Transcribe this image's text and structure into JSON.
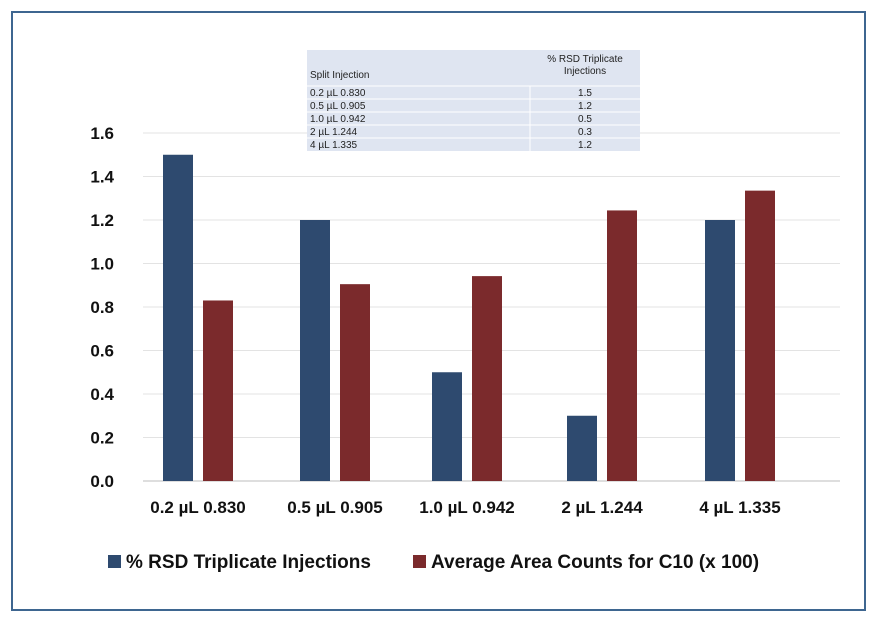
{
  "chart_data": {
    "type": "bar",
    "categories": [
      "0.2 µL 0.830",
      "0.5 µL  0.905",
      "1.0 µL  0.942",
      "2 µL  1.244",
      "4 µL  1.335"
    ],
    "series": [
      {
        "name": "% RSD Triplicate Injections",
        "color": "#2e4a6f",
        "values": [
          1.5,
          1.2,
          0.5,
          0.3,
          1.2
        ]
      },
      {
        "name": "Average Area Counts for C10 (x 100)",
        "color": "#7b2a2c",
        "values": [
          0.83,
          0.905,
          0.942,
          1.244,
          1.335
        ]
      }
    ],
    "ylim": [
      0,
      1.6
    ],
    "yticks": [
      "0.0",
      "0.2",
      "0.4",
      "0.6",
      "0.8",
      "1.0",
      "1.2",
      "1.4",
      "1.6"
    ],
    "grid": true,
    "legend": "bottom",
    "title": "",
    "xlabel": "",
    "ylabel": ""
  },
  "inset_table": {
    "headers": [
      "Split Injection",
      "% RSD Triplicate Injections"
    ],
    "rows": [
      [
        "0.2 µL 0.830",
        "1.5"
      ],
      [
        "0.5 µL  0.905",
        "1.2"
      ],
      [
        "1.0 µL  0.942",
        "0.5"
      ],
      [
        "2 µL  1.244",
        "0.3"
      ],
      [
        "4 µL  1.335",
        "1.2"
      ]
    ]
  }
}
